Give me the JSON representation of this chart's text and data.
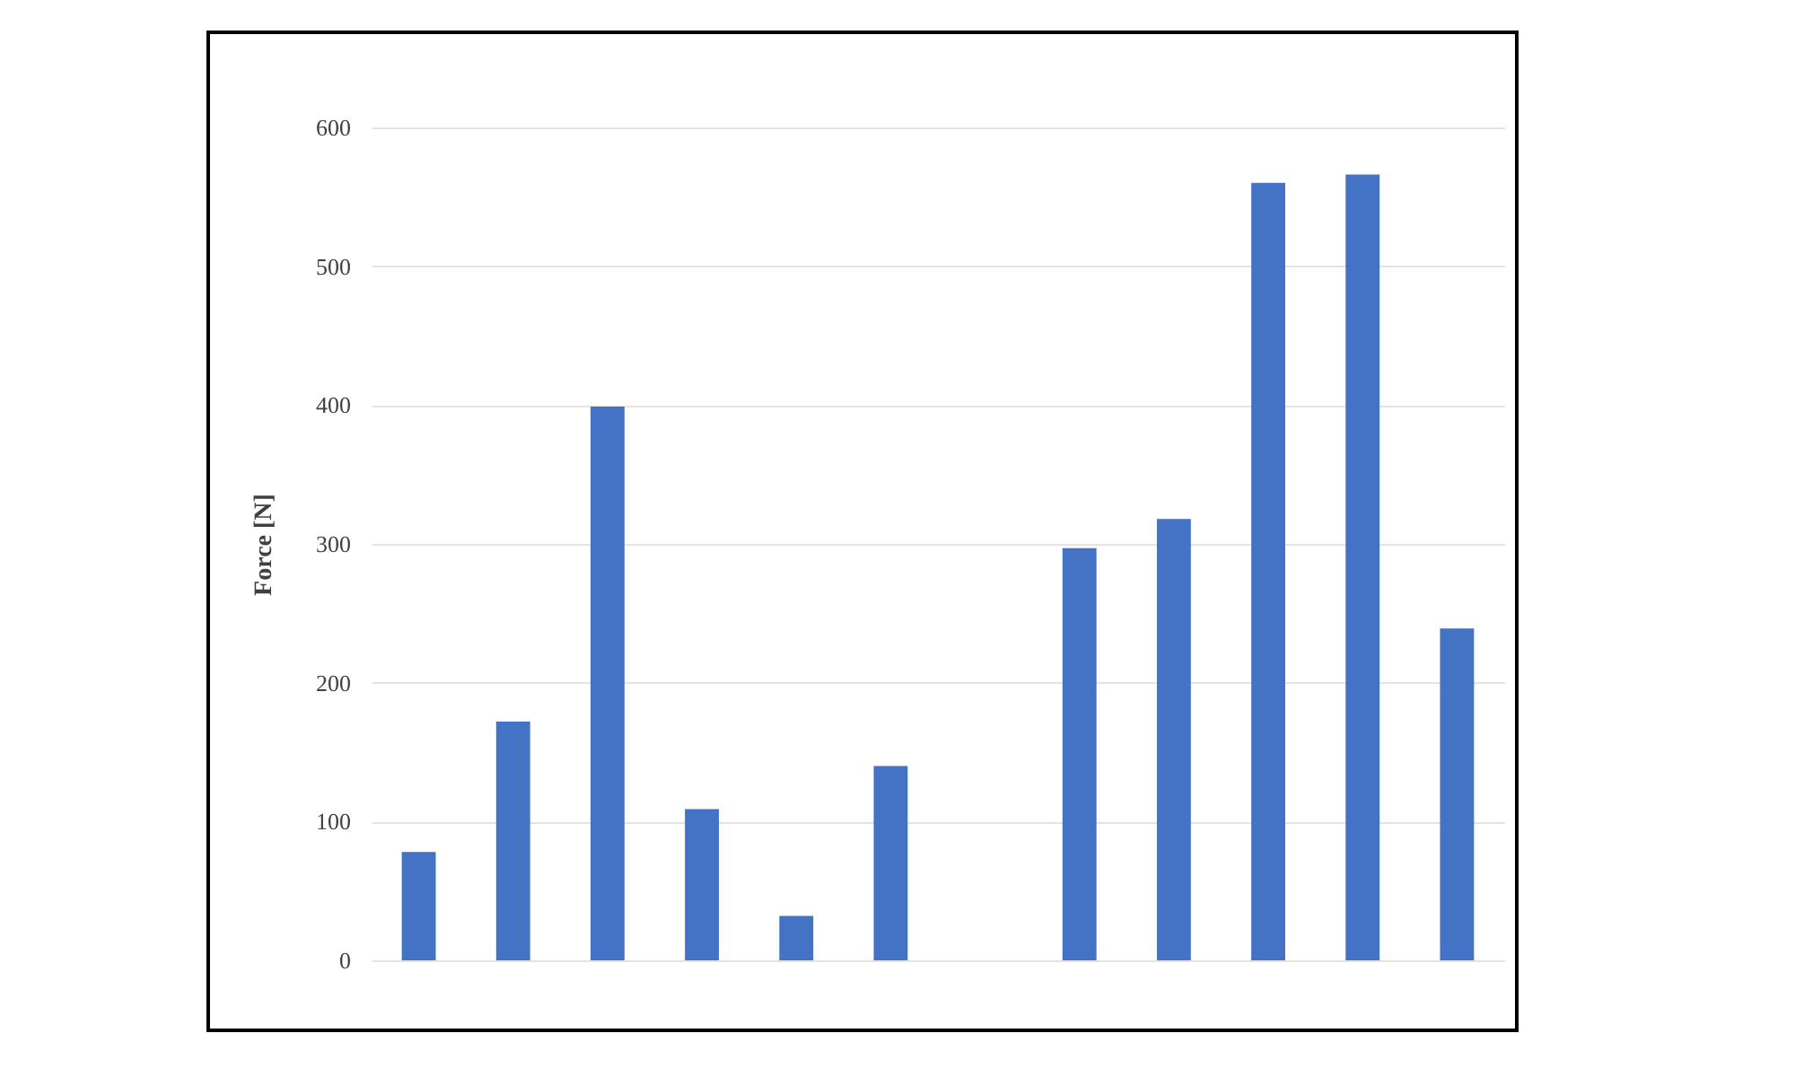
{
  "chart_data": {
    "type": "bar",
    "ylabel": "Force [N]",
    "categories": [
      null,
      null,
      null,
      null,
      null,
      null,
      null,
      null,
      null,
      null,
      null,
      null
    ],
    "values": [
      78,
      172,
      399,
      109,
      32,
      140,
      null,
      297,
      318,
      560,
      566,
      239
    ],
    "color": "#4472c4",
    "ylim": [
      0,
      600
    ],
    "yticks": [
      0,
      100,
      200,
      300,
      400,
      500,
      600
    ],
    "grid": "y"
  }
}
